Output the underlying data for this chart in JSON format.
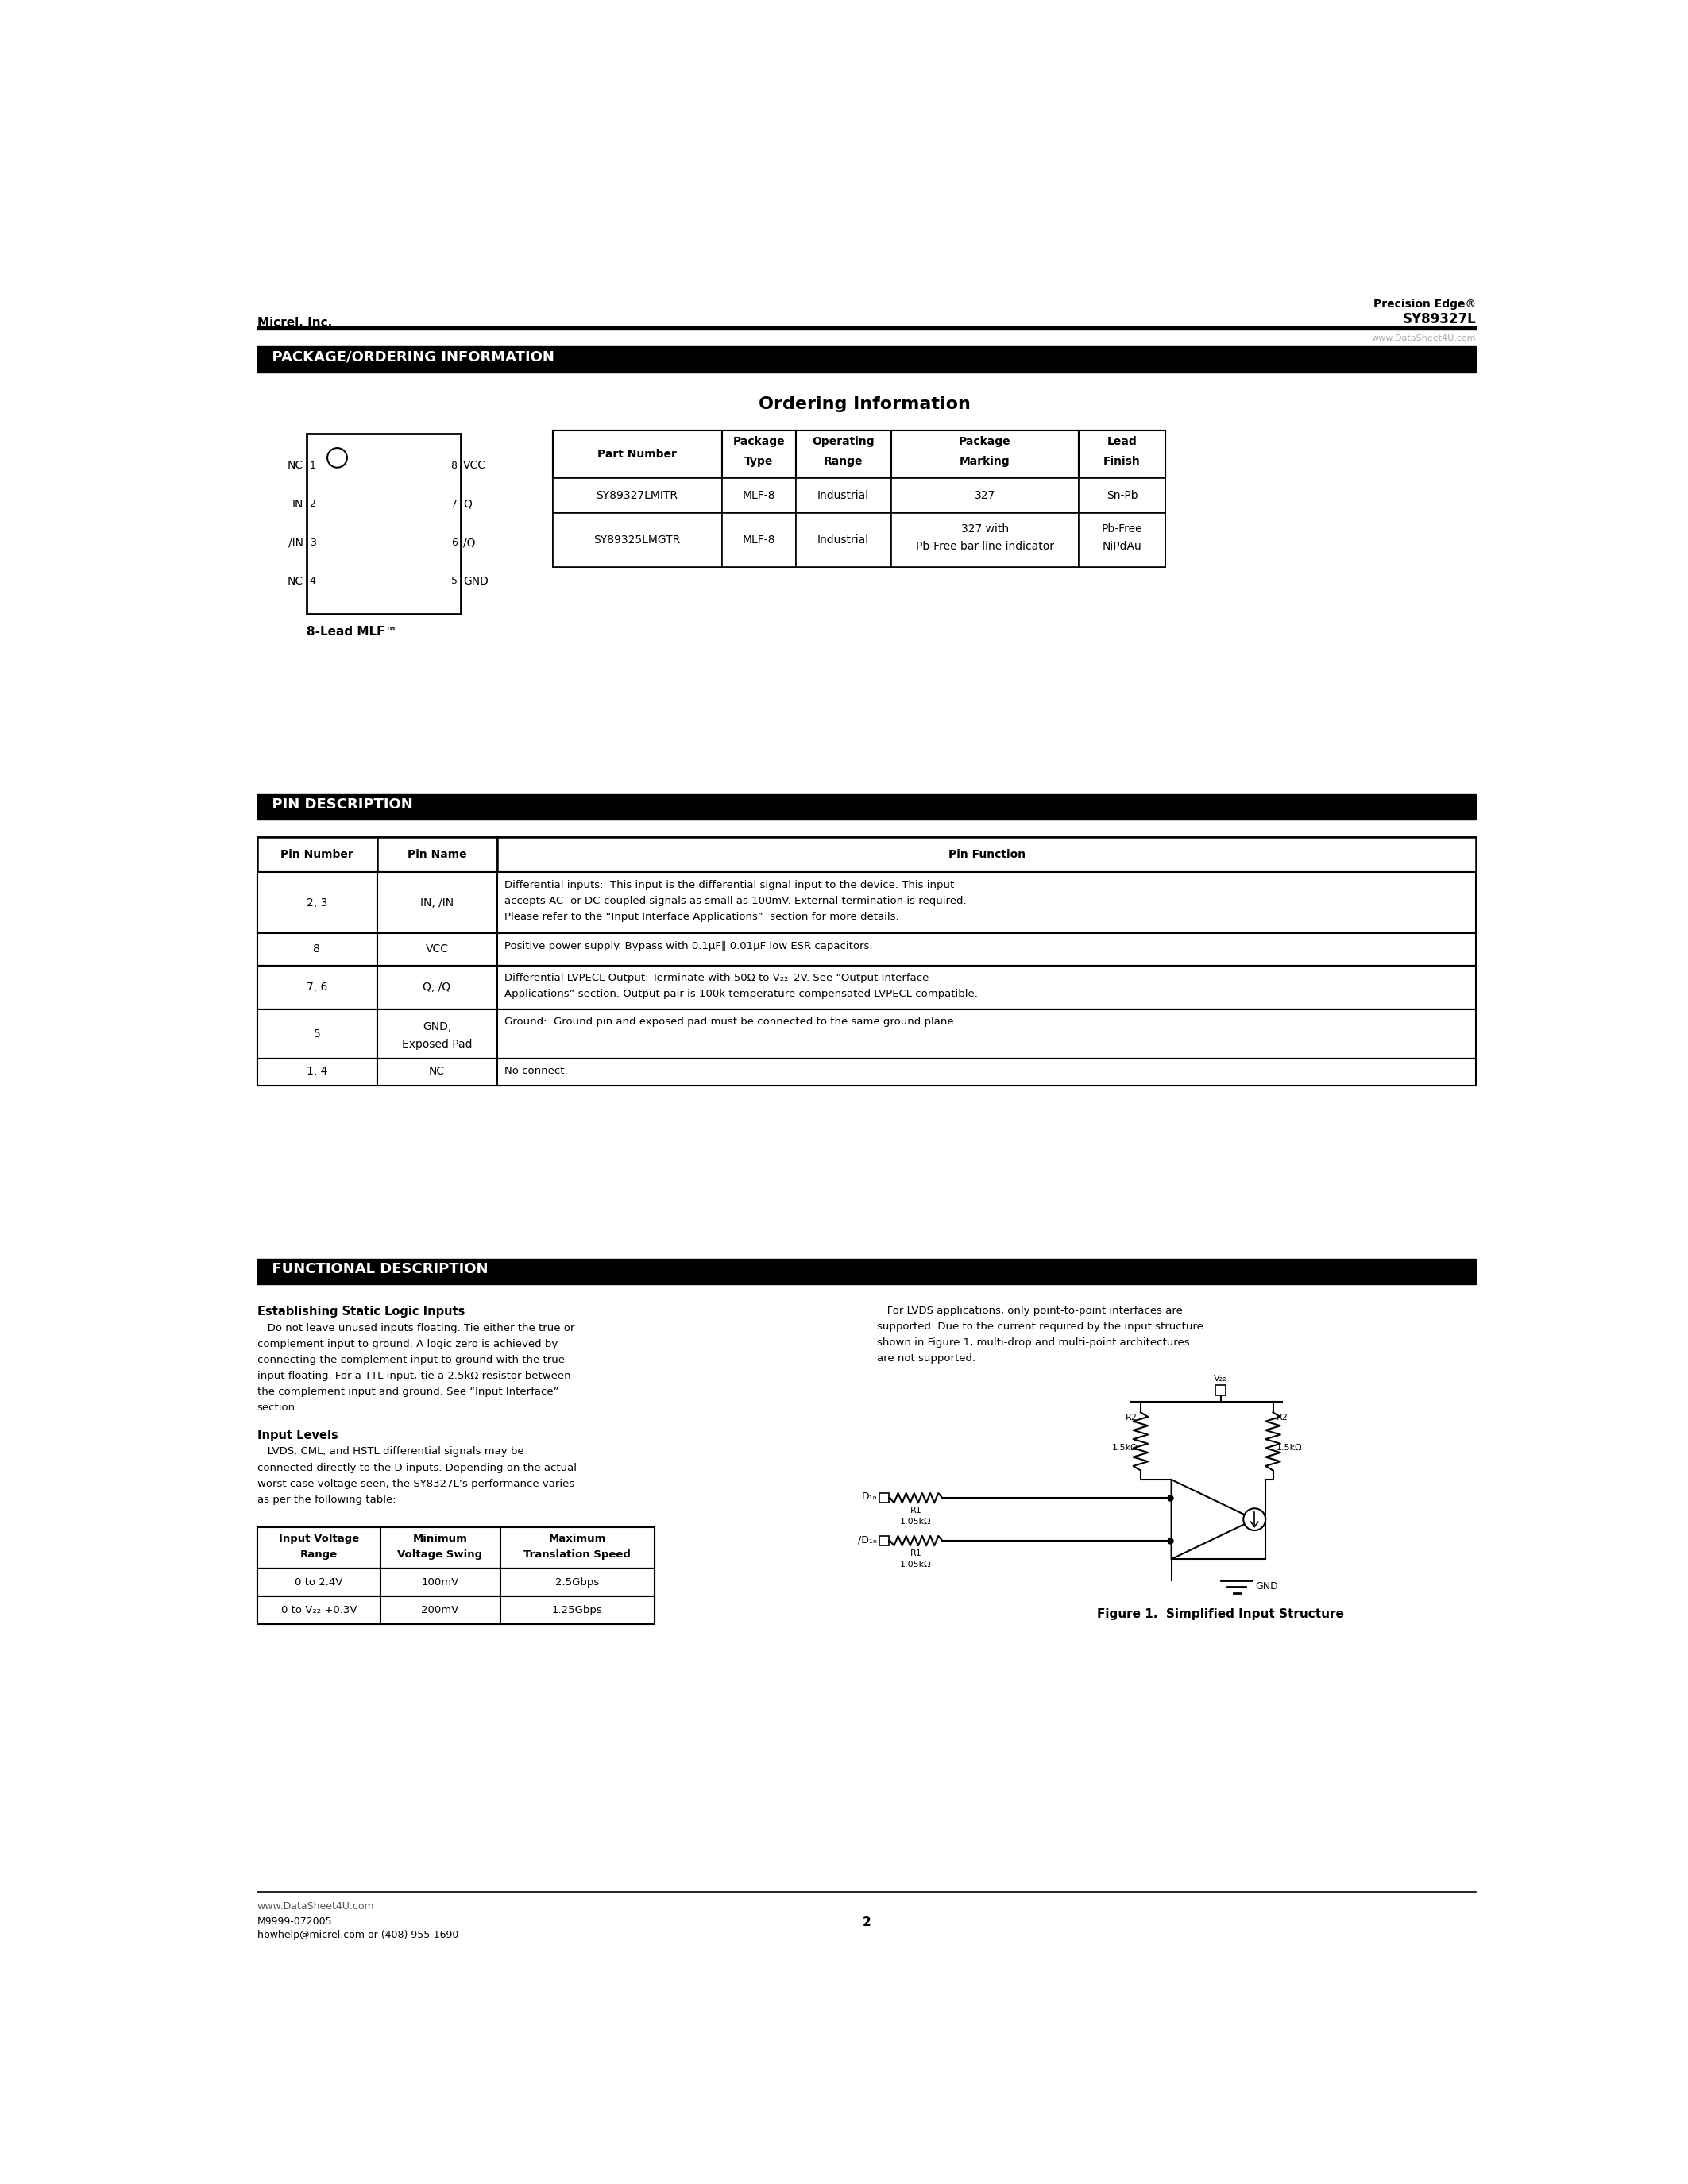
{
  "page_title_left": "Micrel, Inc.",
  "page_title_right_top": "Precision Edge®",
  "page_title_right_bot": "SY89327L",
  "watermark": "www.DataSheet4U.com",
  "section1_title": "  PACKAGE/ORDERING INFORMATION",
  "ordering_title": "Ordering Information",
  "pkg_table_headers": [
    "Part Number",
    "Package\nType",
    "Operating\nRange",
    "Package\nMarking",
    "Lead\nFinish"
  ],
  "pkg_table_rows": [
    [
      "SY89327LMITR",
      "MLF-8",
      "Industrial",
      "327",
      "Sn-Pb"
    ],
    [
      "SY89325LMGTR",
      "MLF-8",
      "Industrial",
      "327 with\nPb-Free bar-line indicator",
      "Pb-Free\nNiPdAu"
    ]
  ],
  "mlf_pins_left": [
    [
      "NC",
      "1"
    ],
    [
      "IN",
      "2"
    ],
    [
      "/IN",
      "3"
    ],
    [
      "NC",
      "4"
    ]
  ],
  "mlf_pins_right": [
    [
      "8",
      "VCC"
    ],
    [
      "7",
      "Q"
    ],
    [
      "6",
      "/Q"
    ],
    [
      "5",
      "GND"
    ]
  ],
  "mlf_label": "8-Lead MLF™",
  "section2_title": "  PIN DESCRIPTION",
  "pin_table_headers": [
    "Pin Number",
    "Pin Name",
    "Pin Function"
  ],
  "pin_table_rows": [
    [
      "2, 3",
      "IN, /IN",
      "Differential inputs:  This input is the differential signal input to the device. This input\naccepts AC- or DC-coupled signals as small as 100mV. External termination is required.\nPlease refer to the “Input Interface Applications”  section for more details."
    ],
    [
      "8",
      "VCC",
      "Positive power supply. Bypass with 0.1μF‖ 0.01μF low ESR capacitors."
    ],
    [
      "7, 6",
      "Q, /Q",
      "Differential LVPECL Output: Terminate with 50Ω to V₂₂–2V. See “Output Interface\nApplications” section. Output pair is 100k temperature compensated LVPECL compatible."
    ],
    [
      "5",
      "GND,\nExposed Pad",
      "Ground:  Ground pin and exposed pad must be connected to the same ground plane."
    ],
    [
      "1, 4",
      "NC",
      "No connect."
    ]
  ],
  "section3_title": "  FUNCTIONAL DESCRIPTION",
  "func_para1_title": "Establishing Static Logic Inputs",
  "func_para1_lines": [
    "   Do not leave unused inputs floating. Tie either the true or",
    "complement input to ground. A logic zero is achieved by",
    "connecting the complement input to ground with the true",
    "input floating. For a TTL input, tie a 2.5kΩ resistor between",
    "the complement input and ground. See “Input Interface”",
    "section."
  ],
  "func_para2_title": "Input Levels",
  "func_para2_lines": [
    "   LVDS, CML, and HSTL differential signals may be",
    "connected directly to the D inputs. Depending on the actual",
    "worst case voltage seen, the SY8327L’s performance varies",
    "as per the following table:"
  ],
  "func_para3_lines": [
    "   For LVDS applications, only point-to-point interfaces are",
    "supported. Due to the current required by the input structure",
    "shown in Figure 1, multi-drop and multi-point architectures",
    "are not supported."
  ],
  "input_table_headers": [
    "Input Voltage\nRange",
    "Minimum\nVoltage Swing",
    "Maximum\nTranslation Speed"
  ],
  "input_table_rows": [
    [
      "0 to 2.4V",
      "100mV",
      "2.5Gbps"
    ],
    [
      "0 to V₂₂ +0.3V",
      "200mV",
      "1.25Gbps"
    ]
  ],
  "figure_caption": "Figure 1.  Simplified Input Structure",
  "footer_url": "www.DataSheet4U.com",
  "footer_doc": "M9999-072005",
  "footer_email": "hbwhelp@micrel.com or (408) 955-1690",
  "footer_page": "2"
}
